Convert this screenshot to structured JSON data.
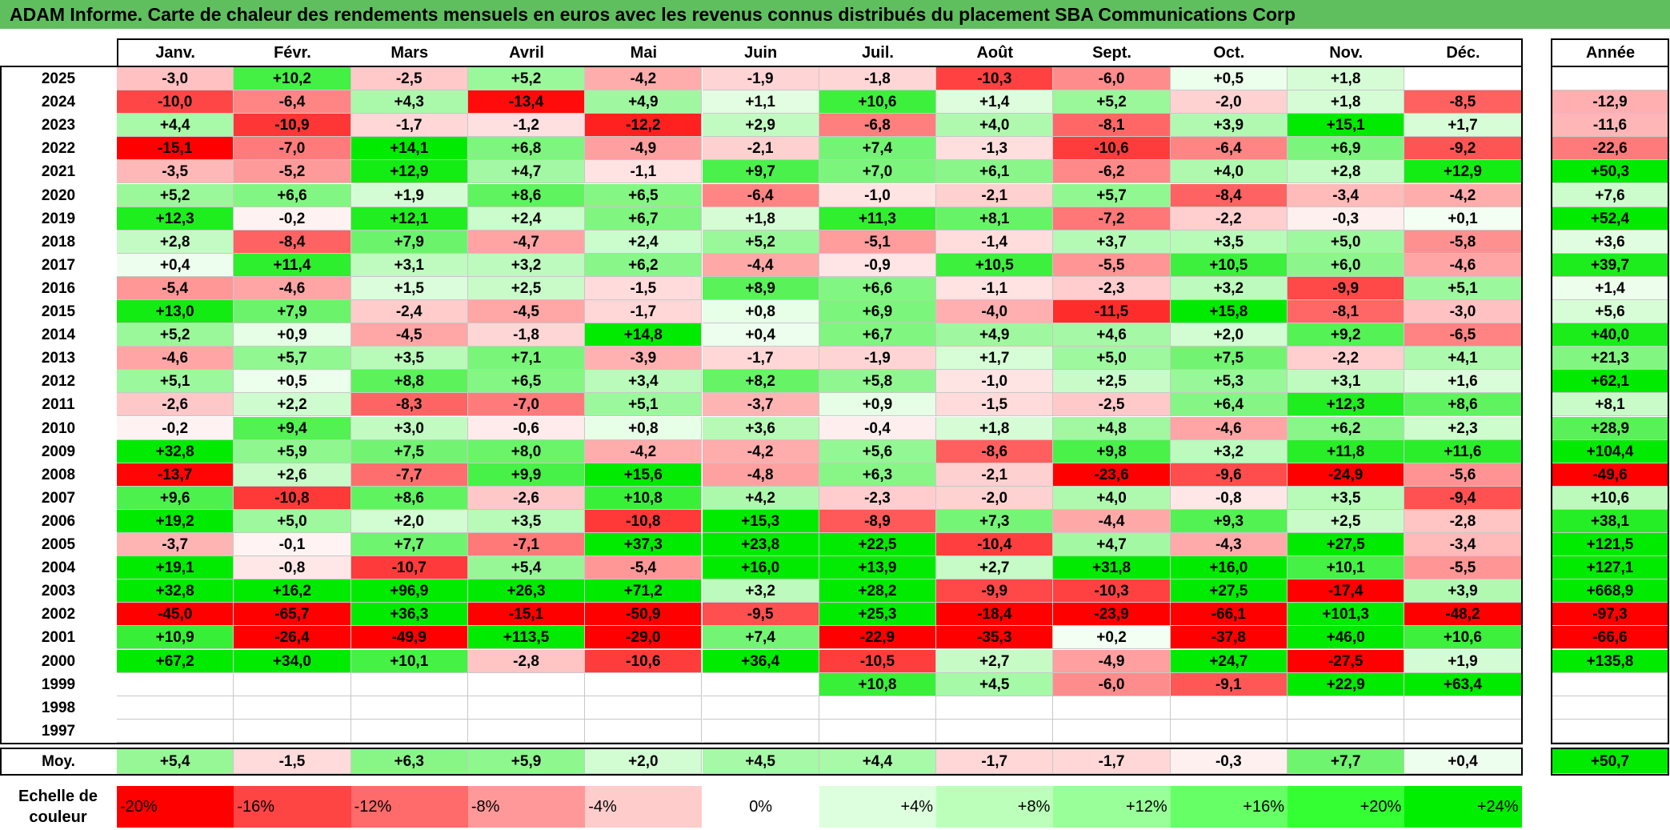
{
  "title": "ADAM Informe. Carte de chaleur des rendements mensuels en euros avec les revenus connus distribués du placement SBA Communications Corp",
  "chart_data": {
    "type": "heatmap",
    "months": [
      "Janv.",
      "Févr.",
      "Mars",
      "Avril",
      "Mai",
      "Juin",
      "Juil.",
      "Août",
      "Sept.",
      "Oct.",
      "Nov.",
      "Déc."
    ],
    "annual_header": "Année",
    "rows": [
      {
        "year": "2025",
        "values": [
          "-3,0",
          "+10,2",
          "-2,5",
          "+5,2",
          "-4,2",
          "-1,9",
          "-1,8",
          "-10,3",
          "-6,0",
          "+0,5",
          "+1,8",
          ""
        ],
        "annual": ""
      },
      {
        "year": "2024",
        "values": [
          "-10,0",
          "-6,4",
          "+4,3",
          "-13,4",
          "+4,9",
          "+1,1",
          "+10,6",
          "+1,4",
          "+5,2",
          "-2,0",
          "+1,8",
          "-8,5"
        ],
        "annual": "-12,9"
      },
      {
        "year": "2023",
        "values": [
          "+4,4",
          "-10,9",
          "-1,7",
          "-1,2",
          "-12,2",
          "+2,9",
          "-6,8",
          "+4,0",
          "-8,1",
          "+3,9",
          "+15,1",
          "+1,7"
        ],
        "annual": "-11,6"
      },
      {
        "year": "2022",
        "values": [
          "-15,1",
          "-7,0",
          "+14,1",
          "+6,8",
          "-4,9",
          "-2,1",
          "+7,4",
          "-1,3",
          "-10,6",
          "-6,4",
          "+6,9",
          "-9,2"
        ],
        "annual": "-22,6"
      },
      {
        "year": "2021",
        "values": [
          "-3,5",
          "-5,2",
          "+12,9",
          "+4,7",
          "-1,1",
          "+9,7",
          "+7,0",
          "+6,1",
          "-6,2",
          "+4,0",
          "+2,8",
          "+12,9"
        ],
        "annual": "+50,3"
      },
      {
        "year": "2020",
        "values": [
          "+5,2",
          "+6,6",
          "+1,9",
          "+8,6",
          "+6,5",
          "-6,4",
          "-1,0",
          "-2,1",
          "+5,7",
          "-8,4",
          "-3,4",
          "-4,2"
        ],
        "annual": "+7,6"
      },
      {
        "year": "2019",
        "values": [
          "+12,3",
          "-0,2",
          "+12,1",
          "+2,4",
          "+6,7",
          "+1,8",
          "+11,3",
          "+8,1",
          "-7,2",
          "-2,2",
          "-0,3",
          "+0,1"
        ],
        "annual": "+52,4"
      },
      {
        "year": "2018",
        "values": [
          "+2,8",
          "-8,4",
          "+7,9",
          "-4,7",
          "+2,4",
          "+5,2",
          "-5,1",
          "-1,4",
          "+3,7",
          "+3,5",
          "+5,0",
          "-5,8"
        ],
        "annual": "+3,6"
      },
      {
        "year": "2017",
        "values": [
          "+0,4",
          "+11,4",
          "+3,1",
          "+3,2",
          "+6,2",
          "-4,4",
          "-0,9",
          "+10,5",
          "-5,5",
          "+10,5",
          "+6,0",
          "-4,6"
        ],
        "annual": "+39,7"
      },
      {
        "year": "2016",
        "values": [
          "-5,4",
          "-4,6",
          "+1,5",
          "+2,5",
          "-1,5",
          "+8,9",
          "+6,6",
          "-1,1",
          "-2,3",
          "+3,2",
          "-9,9",
          "+5,1"
        ],
        "annual": "+1,4"
      },
      {
        "year": "2015",
        "values": [
          "+13,0",
          "+7,9",
          "-2,4",
          "-4,5",
          "-1,7",
          "+0,8",
          "+6,9",
          "-4,0",
          "-11,5",
          "+15,8",
          "-8,1",
          "-3,0"
        ],
        "annual": "+5,6"
      },
      {
        "year": "2014",
        "values": [
          "+5,2",
          "+0,9",
          "-4,5",
          "-1,8",
          "+14,8",
          "+0,4",
          "+6,7",
          "+4,9",
          "+4,6",
          "+2,0",
          "+9,2",
          "-6,5"
        ],
        "annual": "+40,0"
      },
      {
        "year": "2013",
        "values": [
          "-4,6",
          "+5,7",
          "+3,5",
          "+7,1",
          "-3,9",
          "-1,7",
          "-1,9",
          "+1,7",
          "+5,0",
          "+7,5",
          "-2,2",
          "+4,1"
        ],
        "annual": "+21,3"
      },
      {
        "year": "2012",
        "values": [
          "+5,1",
          "+0,5",
          "+8,8",
          "+6,5",
          "+3,4",
          "+8,2",
          "+5,8",
          "-1,0",
          "+2,5",
          "+5,3",
          "+3,1",
          "+1,6"
        ],
        "annual": "+62,1"
      },
      {
        "year": "2011",
        "values": [
          "-2,6",
          "+2,2",
          "-8,3",
          "-7,0",
          "+5,1",
          "-3,7",
          "+0,9",
          "-1,5",
          "-2,5",
          "+6,4",
          "+12,3",
          "+8,6"
        ],
        "annual": "+8,1"
      },
      {
        "year": "2010",
        "values": [
          "-0,2",
          "+9,4",
          "+3,0",
          "-0,6",
          "+0,8",
          "+3,6",
          "-0,4",
          "+1,8",
          "+4,8",
          "-4,6",
          "+6,2",
          "+2,3"
        ],
        "annual": "+28,9"
      },
      {
        "year": "2009",
        "values": [
          "+32,8",
          "+5,9",
          "+7,5",
          "+8,0",
          "-4,2",
          "-4,2",
          "+5,6",
          "-8,6",
          "+9,8",
          "+3,2",
          "+11,8",
          "+11,6"
        ],
        "annual": "+104,4"
      },
      {
        "year": "2008",
        "values": [
          "-13,7",
          "+2,6",
          "-7,7",
          "+9,9",
          "+15,6",
          "-4,8",
          "+6,3",
          "-2,1",
          "-23,6",
          "-9,6",
          "-24,9",
          "-5,6"
        ],
        "annual": "-49,6"
      },
      {
        "year": "2007",
        "values": [
          "+9,6",
          "-10,8",
          "+8,6",
          "-2,6",
          "+10,8",
          "+4,2",
          "-2,3",
          "-2,0",
          "+4,0",
          "-0,8",
          "+3,5",
          "-9,4"
        ],
        "annual": "+10,6"
      },
      {
        "year": "2006",
        "values": [
          "+19,2",
          "+5,0",
          "+2,0",
          "+3,5",
          "-10,8",
          "+15,3",
          "-8,9",
          "+7,3",
          "-4,4",
          "+9,3",
          "+2,5",
          "-2,8"
        ],
        "annual": "+38,1"
      },
      {
        "year": "2005",
        "values": [
          "-3,7",
          "-0,1",
          "+7,7",
          "-7,1",
          "+37,3",
          "+23,8",
          "+22,5",
          "-10,4",
          "+4,7",
          "-4,3",
          "+27,5",
          "-3,4"
        ],
        "annual": "+121,5"
      },
      {
        "year": "2004",
        "values": [
          "+19,1",
          "-0,8",
          "-10,7",
          "+5,4",
          "-5,4",
          "+16,0",
          "+13,9",
          "+2,7",
          "+31,8",
          "+16,0",
          "+10,1",
          "-5,5"
        ],
        "annual": "+127,1"
      },
      {
        "year": "2003",
        "values": [
          "+32,8",
          "+16,2",
          "+96,9",
          "+26,3",
          "+71,2",
          "+3,2",
          "+28,2",
          "-9,9",
          "-10,3",
          "+27,5",
          "-17,4",
          "+3,9"
        ],
        "annual": "+668,9"
      },
      {
        "year": "2002",
        "values": [
          "-45,0",
          "-65,7",
          "+36,3",
          "-15,1",
          "-50,9",
          "-9,5",
          "+25,3",
          "-18,4",
          "-23,9",
          "-66,1",
          "+101,3",
          "-48,2"
        ],
        "annual": "-97,3"
      },
      {
        "year": "2001",
        "values": [
          "+10,9",
          "-26,4",
          "-49,9",
          "+113,5",
          "-29,0",
          "+7,4",
          "-22,9",
          "-35,3",
          "+0,2",
          "-37,8",
          "+46,0",
          "+10,6"
        ],
        "annual": "-66,6"
      },
      {
        "year": "2000",
        "values": [
          "+67,2",
          "+34,0",
          "+10,1",
          "-2,8",
          "-10,6",
          "+36,4",
          "-10,5",
          "+2,7",
          "-4,9",
          "+24,7",
          "-27,5",
          "+1,9"
        ],
        "annual": "+135,8"
      },
      {
        "year": "1999",
        "values": [
          "",
          "",
          "",
          "",
          "",
          "",
          "+10,8",
          "+4,5",
          "-6,0",
          "-9,1",
          "+22,9",
          "+63,4"
        ],
        "annual": ""
      },
      {
        "year": "1998",
        "values": [
          "",
          "",
          "",
          "",
          "",
          "",
          "",
          "",
          "",
          "",
          "",
          ""
        ],
        "annual": ""
      },
      {
        "year": "1997",
        "values": [
          "",
          "",
          "",
          "",
          "",
          "",
          "",
          "",
          "",
          "",
          "",
          ""
        ],
        "annual": ""
      }
    ],
    "average": {
      "label": "Moy.",
      "values": [
        "+5,4",
        "-1,5",
        "+6,3",
        "+5,9",
        "+2,0",
        "+4,5",
        "+4,4",
        "-1,7",
        "-1,7",
        "-0,3",
        "+7,7",
        "+0,4"
      ],
      "annual": "+50,7"
    },
    "scale": {
      "label": "Echelle de couleur",
      "steps": [
        "-20%",
        "-16%",
        "-12%",
        "-8%",
        "-4%",
        "0%",
        "+4%",
        "+8%",
        "+12%",
        "+16%",
        "+20%",
        "+24%"
      ],
      "colors": [
        "#ff0000",
        "#ff4444",
        "#ff6a6a",
        "#ff9999",
        "#ffcccc",
        "#ffffff",
        "#ddffdd",
        "#bbffbb",
        "#99ff99",
        "#66ff66",
        "#33ff33",
        "#00ee00"
      ]
    }
  }
}
